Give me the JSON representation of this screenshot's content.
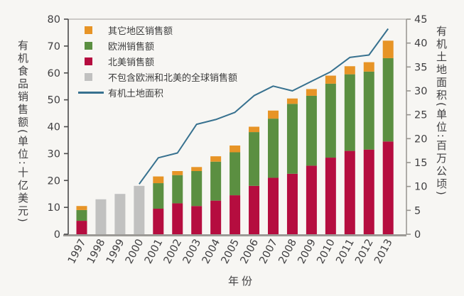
{
  "chart_data": {
    "type": "bar+line",
    "categories": [
      "1997",
      "1998",
      "1999",
      "2000",
      "2001",
      "2002",
      "2003",
      "2004",
      "2005",
      "2006",
      "2007",
      "2008",
      "2009",
      "2010",
      "2011",
      "2012",
      "2013"
    ],
    "xlabel": "年份",
    "left_axis": {
      "label": "有机食品销售额(单位:十亿美元)",
      "range": [
        0,
        80
      ],
      "tick_step": 10
    },
    "right_axis": {
      "label": "有机土地面积(单位:百万公顷)",
      "range": [
        0,
        45
      ],
      "tick_step": 5
    },
    "grid": false,
    "legend_position": "top-left-inside",
    "series": [
      {
        "name": "北美销售额",
        "role": "stack",
        "color": "#b50d3f",
        "values": [
          5,
          null,
          null,
          null,
          9.5,
          11.5,
          10.5,
          12.5,
          14.5,
          18,
          21,
          22.5,
          25.5,
          28.5,
          31,
          31.5,
          34.5
        ]
      },
      {
        "name": "欧洲销售额",
        "role": "stack",
        "color": "#5b8f41",
        "values": [
          4,
          null,
          null,
          null,
          9.5,
          10.5,
          13,
          14.5,
          16,
          20,
          22,
          26,
          26,
          27.5,
          28.5,
          29,
          31
        ]
      },
      {
        "name": "其它地区销售额",
        "role": "stack",
        "color": "#e79426",
        "values": [
          1.5,
          null,
          null,
          null,
          2.5,
          1.5,
          1.5,
          2,
          2.5,
          2,
          3,
          2,
          2.5,
          3,
          3,
          3.5,
          6.5
        ]
      },
      {
        "name": "不包含欧洲和北美的全球销售额",
        "role": "stack",
        "color": "#c1c1c0",
        "values": [
          null,
          13,
          15,
          18,
          null,
          null,
          null,
          null,
          null,
          null,
          null,
          null,
          null,
          null,
          null,
          null,
          null
        ]
      },
      {
        "name": "有机土地面积",
        "role": "line",
        "axis": "right",
        "color": "#37718f",
        "values": [
          null,
          null,
          null,
          10.5,
          16,
          17,
          23,
          24,
          25.5,
          29,
          31,
          30,
          32,
          34,
          37,
          37.5,
          43
        ]
      }
    ],
    "legend": [
      {
        "label": "其它地区销售额",
        "swatch": "square",
        "color": "#e79426"
      },
      {
        "label": "欧洲销售额",
        "swatch": "square",
        "color": "#5b8f41"
      },
      {
        "label": "北美销售额",
        "swatch": "square",
        "color": "#b50d3f"
      },
      {
        "label": "不包含欧洲和北美的全球销售额",
        "swatch": "square",
        "color": "#c1c1c0"
      },
      {
        "label": "有机土地面积",
        "swatch": "line",
        "color": "#37718f"
      }
    ],
    "colors": {
      "background": "#f7f6f3",
      "text": "#414042",
      "axis_dark": "#4a4a4a",
      "axis_light": "#9c9a96"
    }
  }
}
